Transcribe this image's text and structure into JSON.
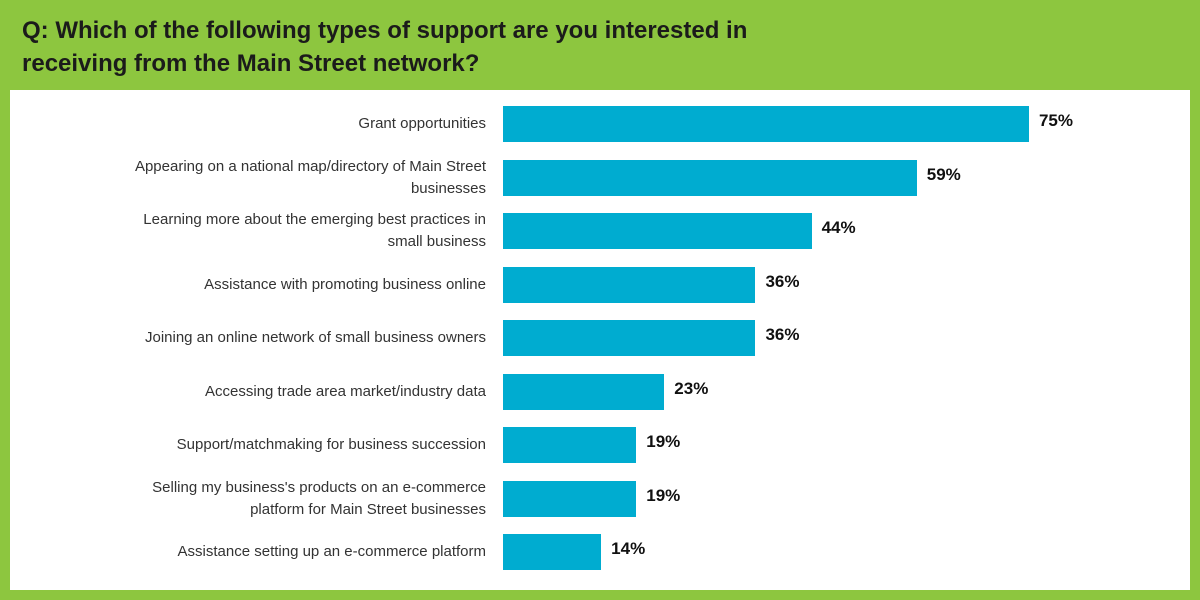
{
  "chart_data": {
    "type": "bar",
    "orientation": "horizontal",
    "title": "Q: Which of the following types of support are you interested in receiving from the Main Street network?",
    "categories": [
      "Grant opportunities",
      "Appearing on a national map/directory of Main Street businesses",
      "Learning more about the emerging best practices in small business",
      "Assistance with promoting business online",
      "Joining an online network of small business owners",
      "Accessing trade area market/industry data",
      "Support/matchmaking for business succession",
      "Selling my business's products on an e-commerce platform for Main Street businesses",
      "Assistance setting up an e-commerce platform"
    ],
    "values": [
      75,
      59,
      44,
      36,
      36,
      23,
      19,
      19,
      14
    ],
    "value_labels": [
      "75%",
      "59%",
      "44%",
      "36%",
      "36%",
      "23%",
      "19%",
      "19%",
      "14%"
    ],
    "color": "#00acd0"
  }
}
